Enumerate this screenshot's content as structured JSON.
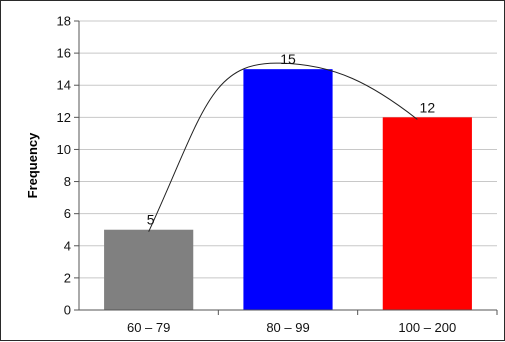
{
  "chart_data": {
    "type": "bar",
    "title": "",
    "xlabel": "",
    "ylabel": "Frequency",
    "categories": [
      "60 – 79",
      "80 – 99",
      "100 – 200"
    ],
    "values": [
      5,
      15,
      12
    ],
    "data_labels": [
      "5",
      "15",
      "12"
    ],
    "bar_colors": [
      "#808080",
      "#0000ff",
      "#ff0000"
    ],
    "ylim": [
      0,
      18
    ],
    "ytick_step": 2,
    "yticks": [
      "0",
      "2",
      "4",
      "6",
      "8",
      "10",
      "12",
      "14",
      "16",
      "18"
    ],
    "grid": true,
    "grid_color": "#c8c8c8",
    "legend": "none",
    "annotation": "freehand curve connecting the bar tops"
  }
}
